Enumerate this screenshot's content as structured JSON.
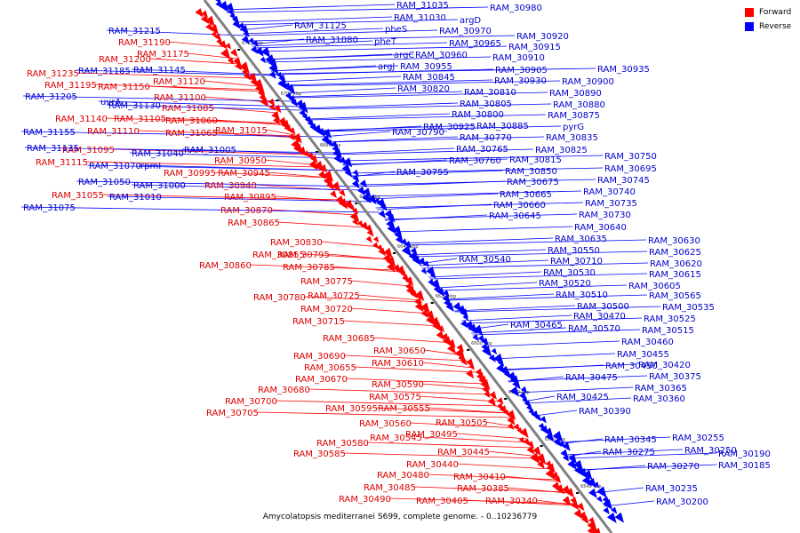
{
  "caption": "Amycolatopsis mediterranei S699, complete genome. - 0..10236779",
  "legend": [
    {
      "label": "Forward",
      "color": "#ff0000"
    },
    {
      "label": "Reverse",
      "color": "#0000ff"
    }
  ],
  "colors": {
    "forward": "#ff0000",
    "reverse": "#0000ff",
    "axis": "#808080"
  },
  "ticks": [
    "6720 kbp",
    "6700 kbp",
    "6680 kbp",
    "6660 kbp",
    "6640 kbp",
    "6620 kbp",
    "6600 kbp",
    "6580 kbp",
    "6560 kbp",
    "6540 kbp"
  ],
  "labels_forward": [
    "RAM_31190",
    "RAM_31200",
    "RAM_31175",
    "RAM_31235",
    "RAM_31195",
    "RAM_31150",
    "RAM_31120",
    "RAM_31100",
    "RAM_31085",
    "RAM_31140",
    "RAM_31105",
    "RAM_31060",
    "RAM_31110",
    "RAM_31065",
    "RAM_31015",
    "RAM_31095",
    "RAM_31115",
    "RAM_30995",
    "RAM_30950",
    "RAM_30945",
    "RAM_30940",
    "RAM_30895",
    "RAM_31055",
    "RAM_30870",
    "RAM_30865",
    "RAM_30830",
    "RAM_30855",
    "RAM_30795",
    "RAM_30860",
    "RAM_30785",
    "RAM_30775",
    "RAM_30780",
    "RAM_30725",
    "RAM_30720",
    "RAM_30715",
    "RAM_30685",
    "RAM_30690",
    "RAM_30650",
    "RAM_30655",
    "RAM_30610",
    "RAM_30670",
    "RAM_30680",
    "RAM_30590",
    "RAM_30575",
    "RAM_30700",
    "RAM_30705",
    "RAM_30595",
    "RAM_30555",
    "RAM_30560",
    "RAM_30505",
    "RAM_30495",
    "RAM_30580",
    "RAM_30545",
    "RAM_30585",
    "RAM_30445",
    "RAM_30440",
    "RAM_30480",
    "RAM_30410",
    "RAM_30485",
    "RAM_30385",
    "RAM_30490",
    "RAM_30405",
    "RAM_30340"
  ],
  "labels_reverse": [
    "RAM_31215",
    "RAM_31185",
    "RAM_31145",
    "RAM_31205",
    "uvrA",
    "RAM_31130",
    "RAM_31155",
    "RAM_31135",
    "RAM_31040",
    "RAM_31005",
    "RAM_31070",
    "rpmI",
    "RAM_31050",
    "RAM_31000",
    "RAM_31010",
    "RAM_31075",
    "RAM_31125",
    "RAM_31080",
    "RAM_31035",
    "RAM_31030",
    "RAM_30980",
    "argD",
    "pheS",
    "pheT",
    "RAM_30970",
    "RAM_30965",
    "RAM_30920",
    "RAM_30915",
    "argC",
    "RAM_30960",
    "RAM_30910",
    "argJ",
    "RAM_30955",
    "RAM_30905",
    "RAM_30845",
    "RAM_30935",
    "RAM_30820",
    "RAM_30930",
    "RAM_30900",
    "RAM_30810",
    "RAM_30890",
    "RAM_30805",
    "RAM_30880",
    "RAM_30800",
    "RAM_30875",
    "RAM_30790",
    "RAM_30925",
    "RAM_30885",
    "pyrG",
    "RAM_30770",
    "RAM_30835",
    "RAM_30765",
    "RAM_30825",
    "RAM_30760",
    "RAM_30815",
    "RAM_30755",
    "RAM_30850",
    "RAM_30750",
    "RAM_30695",
    "RAM_30675",
    "RAM_30745",
    "RAM_30665",
    "RAM_30740",
    "RAM_30660",
    "RAM_30735",
    "RAM_30645",
    "RAM_30730",
    "RAM_30640",
    "RAM_30635",
    "RAM_30630",
    "RAM_30550",
    "RAM_30625",
    "RAM_30540",
    "RAM_30710",
    "RAM_30620",
    "RAM_30530",
    "RAM_30615",
    "RAM_30520",
    "RAM_30605",
    "RAM_30510",
    "RAM_30565",
    "RAM_30500",
    "RAM_30535",
    "RAM_30470",
    "RAM_30525",
    "RAM_30465",
    "RAM_30570",
    "RAM_30515",
    "RAM_30460",
    "RAM_30455",
    "RAM_30450",
    "RAM_30420",
    "RAM_30475",
    "RAM_30375",
    "RAM_30365",
    "RAM_30425",
    "RAM_30360",
    "RAM_30390",
    "RAM_30345",
    "RAM_30255",
    "RAM_30275",
    "RAM_30250",
    "RAM_30190",
    "RAM_30270",
    "RAM_30185",
    "RAM_30235",
    "RAM_30200"
  ]
}
